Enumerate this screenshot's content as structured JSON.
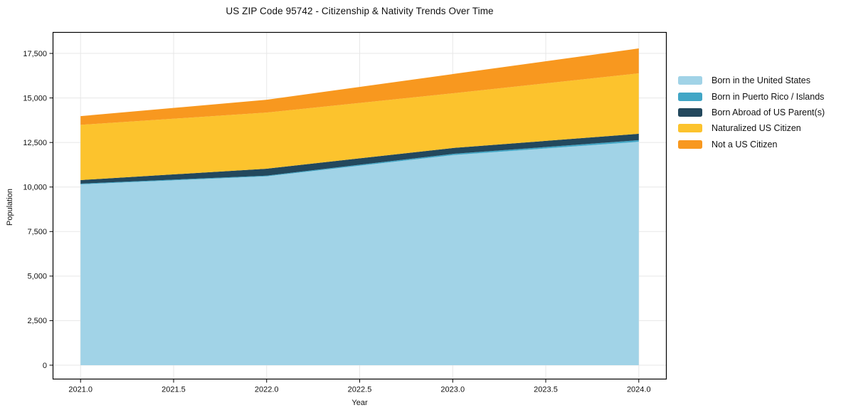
{
  "chart_data": {
    "type": "area",
    "stacked": true,
    "title": "US ZIP Code 95742 - Citizenship & Nativity Trends Over Time",
    "xlabel": "Year",
    "ylabel": "Population",
    "x": [
      2021,
      2022,
      2023,
      2024
    ],
    "series": [
      {
        "name": "Born in the United States",
        "color": "#A1D3E7",
        "values": [
          10150,
          10600,
          11790,
          12540
        ]
      },
      {
        "name": "Born in Puerto Rico / Islands",
        "color": "#41A6C6",
        "values": [
          40,
          40,
          70,
          90
        ]
      },
      {
        "name": "Born Abroad of US Parent(s)",
        "color": "#23485D",
        "values": [
          200,
          390,
          330,
          360
        ]
      },
      {
        "name": "Naturalized US Citizen",
        "color": "#FCC32D",
        "values": [
          3100,
          3150,
          3070,
          3390
        ]
      },
      {
        "name": "Not a US Citizen",
        "color": "#F8981F",
        "values": [
          490,
          720,
          1080,
          1400
        ]
      }
    ],
    "stacked_totals": [
      13980,
      14900,
      16340,
      17780
    ],
    "xticks": [
      2021.0,
      2021.5,
      2022.0,
      2022.5,
      2023.0,
      2023.5,
      2024.0
    ],
    "xtick_labels": [
      "2021.0",
      "2021.5",
      "2022.0",
      "2022.5",
      "2023.0",
      "2023.5",
      "2024.0"
    ],
    "yticks": [
      0,
      2500,
      5000,
      7500,
      10000,
      12500,
      15000,
      17500
    ],
    "ytick_labels": [
      "0",
      "2,500",
      "5,000",
      "7,500",
      "10,000",
      "12,500",
      "15,000",
      "17,500"
    ],
    "xlim": [
      2020.85,
      2024.15
    ],
    "ylim": [
      -800,
      18700
    ],
    "grid": true,
    "grid_color": "#e7e7e7",
    "spine_color": "#000000",
    "text_color": "#111111",
    "legend_position": "right-outside"
  }
}
